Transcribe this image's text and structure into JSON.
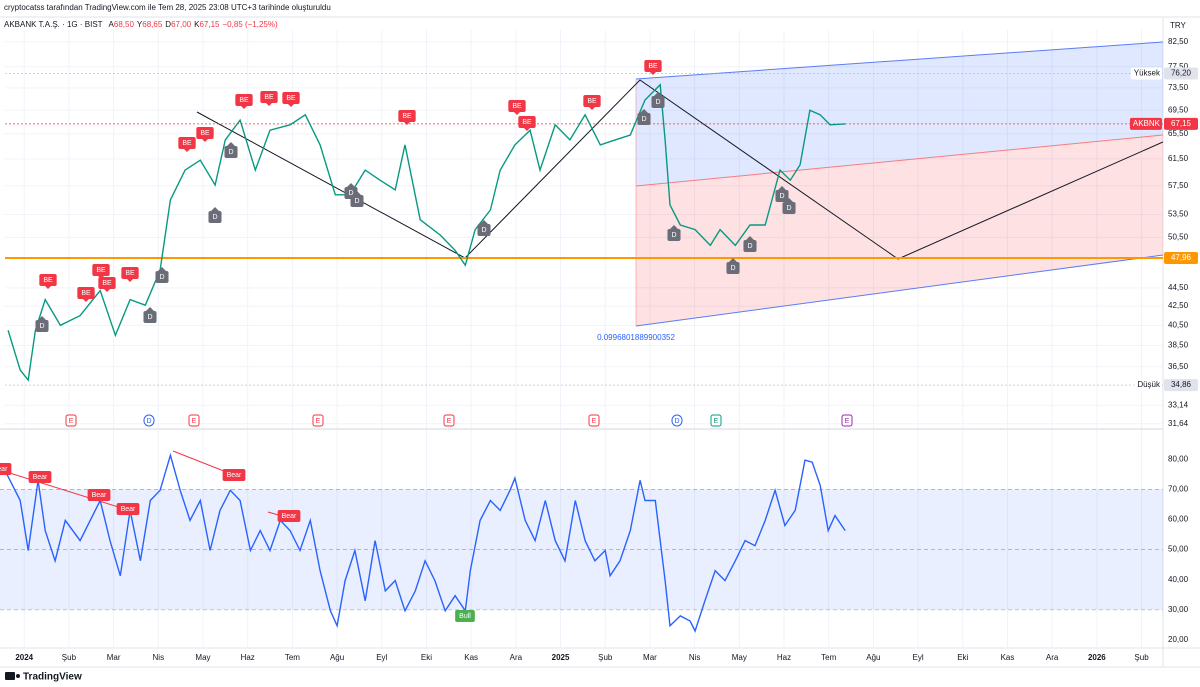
{
  "header": "cryptocatss tarafından TradingView.com ile Tem 28, 2025 23:08 UTC+3 tarihinde oluşturuldu",
  "footer": "TradingView",
  "chart_data": [
    {
      "type": "line",
      "title": "AKBANK T.A.Ş. · 1G · BIST",
      "ohlc": [
        {
          "label": "A",
          "value": "68,50"
        },
        {
          "label": "Y",
          "value": "68,65"
        },
        {
          "label": "D",
          "value": "67,00"
        },
        {
          "label": "K",
          "value": "67,15"
        }
      ],
      "change": "−0,85 (−1,25%)",
      "currency": "TRY",
      "log_scale": true,
      "xlim": [
        -0.43,
        25.48
      ],
      "ylim": [
        31.3,
        85
      ],
      "yticks": [
        {
          "value": 82.5,
          "label": "82,50"
        },
        {
          "value": 77.5,
          "label": "77,50"
        },
        {
          "value": 73.5,
          "label": "73,50"
        },
        {
          "value": 69.5,
          "label": "69,50"
        },
        {
          "value": 65.5,
          "label": "65,50"
        },
        {
          "value": 61.5,
          "label": "61,50"
        },
        {
          "value": 57.5,
          "label": "57,50"
        },
        {
          "value": 53.5,
          "label": "53,50"
        },
        {
          "value": 50.5,
          "label": "50,50"
        },
        {
          "value": 44.5,
          "label": "44,50"
        },
        {
          "value": 42.5,
          "label": "42,50"
        },
        {
          "value": 40.5,
          "label": "40,50"
        },
        {
          "value": 38.5,
          "label": "38,50"
        },
        {
          "value": 36.5,
          "label": "36,50"
        },
        {
          "value": 33.14,
          "label": "33,14"
        },
        {
          "value": 31.64,
          "label": "31,64"
        }
      ],
      "series": [
        {
          "color": "#089981",
          "x": [
            -0.36,
            -0.09,
            0.09,
            0.25,
            0.47,
            0.81,
            1.25,
            1.7,
            2.04,
            2.37,
            2.71,
            3.04,
            3.27,
            3.6,
            3.94,
            4.27,
            4.5,
            4.83,
            5.17,
            5.5,
            5.95,
            6.29,
            6.62,
            6.96,
            7.29,
            7.63,
            7.96,
            8.3,
            8.52,
            8.86,
            9.31,
            9.64,
            9.87,
            10.09,
            10.43,
            10.65,
            10.98,
            11.32,
            11.54,
            11.88,
            12.21,
            12.55,
            12.89,
            13.22,
            13.56,
            13.89,
            14.23,
            14.34,
            14.45,
            14.68,
            15.01,
            15.35,
            15.57,
            15.91,
            16.24,
            16.58,
            16.91,
            17.14,
            17.36,
            17.58,
            17.81,
            18.03,
            18.37
          ],
          "values": [
            40.0,
            36.2,
            35.3,
            40.0,
            43.2,
            40.5,
            41.5,
            44.2,
            39.5,
            43.2,
            42.6,
            46.5,
            55.5,
            59.8,
            61.3,
            57.6,
            64.5,
            67.8,
            59.8,
            66.1,
            67.0,
            68.7,
            63.7,
            56.2,
            56.2,
            59.8,
            58.3,
            56.9,
            63.7,
            52.8,
            50.8,
            48.9,
            47.1,
            51.5,
            54.1,
            59.8,
            63.7,
            66.1,
            59.8,
            67.0,
            64.5,
            68.7,
            63.7,
            64.5,
            65.3,
            71.3,
            74.1,
            64.5,
            54.8,
            52.1,
            51.5,
            49.5,
            51.5,
            49.5,
            52.1,
            52.1,
            59.8,
            58.3,
            60.6,
            69.5,
            68.7,
            67.0,
            67.15
          ]
        }
      ],
      "levels": [
        {
          "name": "Yüksek",
          "value": 76.2,
          "value_label": "76,20",
          "color": "#e0e3eb"
        },
        {
          "name": "AKBNK",
          "value": 67.15,
          "value_label": "67,15",
          "color": "#f23645"
        },
        {
          "value": 47.96,
          "value_label": "47,96",
          "color": "#ff9800"
        },
        {
          "name": "Düşük",
          "value": 34.86,
          "value_label": "34,86",
          "color": "#e0e3eb"
        }
      ],
      "pitchfork_label": "0.0996801889900352",
      "be_labels": [
        "BE",
        "BE",
        "BE",
        "BE",
        "BE",
        "BE",
        "BE",
        "BE",
        "BE",
        "BE",
        "BE",
        "BE",
        "BE",
        "BE",
        "BE"
      ],
      "d_labels": [
        "D",
        "D",
        "D",
        "D",
        "D",
        "D",
        "D",
        "D",
        "D",
        "D",
        "D",
        "D",
        "D",
        "D",
        "D"
      ],
      "events": [
        "E",
        "D",
        "E",
        "E",
        "E",
        "E",
        "D",
        "E",
        "E"
      ]
    },
    {
      "type": "line",
      "xlim": [
        -0.43,
        25.48
      ],
      "ylim": [
        11.7,
        89.7
      ],
      "band": [
        30,
        70
      ],
      "midline": 50,
      "yticks": [
        {
          "value": 80,
          "label": "80,00"
        },
        {
          "value": 70,
          "label": "70,00"
        },
        {
          "value": 60,
          "label": "60,00"
        },
        {
          "value": 50,
          "label": "50,00"
        },
        {
          "value": 40,
          "label": "40,00"
        },
        {
          "value": 30,
          "label": "30,00"
        },
        {
          "value": 20,
          "label": "20,00"
        }
      ],
      "xticks": [
        {
          "value": 0,
          "label": "2024"
        },
        {
          "value": 1,
          "label": "Şub"
        },
        {
          "value": 2,
          "label": "Mar"
        },
        {
          "value": 3,
          "label": "Nis"
        },
        {
          "value": 4,
          "label": "May"
        },
        {
          "value": 5,
          "label": "Haz"
        },
        {
          "value": 6,
          "label": "Tem"
        },
        {
          "value": 7,
          "label": "Ağu"
        },
        {
          "value": 8,
          "label": "Eyl"
        },
        {
          "value": 9,
          "label": "Eki"
        },
        {
          "value": 10,
          "label": "Kas"
        },
        {
          "value": 11,
          "label": "Ara"
        },
        {
          "value": 12,
          "label": "2025"
        },
        {
          "value": 13,
          "label": "Şub"
        },
        {
          "value": 14,
          "label": "Mar"
        },
        {
          "value": 15,
          "label": "Nis"
        },
        {
          "value": 16,
          "label": "May"
        },
        {
          "value": 17,
          "label": "Haz"
        },
        {
          "value": 18,
          "label": "Tem"
        },
        {
          "value": 19,
          "label": "Ağu"
        },
        {
          "value": 20,
          "label": "Eyl"
        },
        {
          "value": 21,
          "label": "Eki"
        },
        {
          "value": 22,
          "label": "Kas"
        },
        {
          "value": 23,
          "label": "Ara"
        },
        {
          "value": 24,
          "label": "2026"
        },
        {
          "value": 25,
          "label": "Şub"
        }
      ],
      "series": [
        {
          "color": "#2962ff",
          "x": [
            -0.43,
            -0.09,
            0.09,
            0.31,
            0.47,
            0.69,
            0.92,
            1.25,
            1.7,
            1.92,
            2.15,
            2.37,
            2.6,
            2.82,
            3.04,
            3.27,
            3.49,
            3.71,
            3.94,
            4.16,
            4.38,
            4.61,
            4.83,
            5.06,
            5.28,
            5.5,
            5.73,
            5.95,
            6.17,
            6.4,
            6.62,
            6.85,
            7.0,
            7.18,
            7.4,
            7.63,
            7.85,
            8.08,
            8.3,
            8.52,
            8.75,
            8.97,
            9.19,
            9.42,
            9.64,
            9.87,
            9.98,
            10.2,
            10.43,
            10.65,
            10.87,
            10.98,
            11.21,
            11.43,
            11.66,
            11.88,
            12.1,
            12.33,
            12.55,
            12.77,
            13.0,
            13.11,
            13.33,
            13.56,
            13.78,
            13.89,
            14.12,
            14.23,
            14.34,
            14.45,
            14.68,
            14.9,
            15.01,
            15.23,
            15.46,
            15.68,
            15.91,
            16.13,
            16.35,
            16.58,
            16.8,
            17.02,
            17.25,
            17.47,
            17.63,
            17.81,
            17.99,
            18.14,
            18.37
          ],
          "values": [
            76.3,
            66.3,
            49.7,
            73.0,
            56.3,
            46.3,
            59.7,
            53.0,
            66.3,
            53.0,
            41.3,
            63.0,
            46.3,
            66.3,
            69.7,
            81.3,
            69.7,
            59.7,
            66.3,
            49.7,
            63.0,
            69.7,
            66.3,
            49.7,
            56.3,
            49.7,
            59.7,
            56.3,
            49.7,
            59.7,
            43.0,
            29.7,
            24.7,
            39.7,
            49.7,
            33.0,
            53.0,
            36.3,
            39.7,
            29.7,
            36.3,
            46.3,
            39.7,
            29.7,
            34.7,
            29.7,
            43.0,
            59.7,
            66.3,
            63.0,
            69.7,
            73.7,
            59.7,
            53.0,
            66.3,
            53.0,
            46.3,
            66.3,
            53.0,
            46.3,
            49.7,
            41.3,
            46.3,
            56.3,
            73.0,
            66.3,
            66.3,
            53.0,
            39.7,
            24.7,
            28.0,
            26.3,
            23.0,
            33.0,
            43.0,
            39.7,
            46.3,
            53.0,
            51.3,
            59.7,
            69.7,
            58.0,
            63.0,
            79.7,
            79.0,
            71.3,
            56.3,
            61.3,
            56.3
          ]
        }
      ],
      "bear_labels": [
        "Bear",
        "Bear",
        "Bear",
        "Bear",
        "Bear",
        "Bear"
      ],
      "bull_labels": [
        "Bull"
      ]
    }
  ]
}
